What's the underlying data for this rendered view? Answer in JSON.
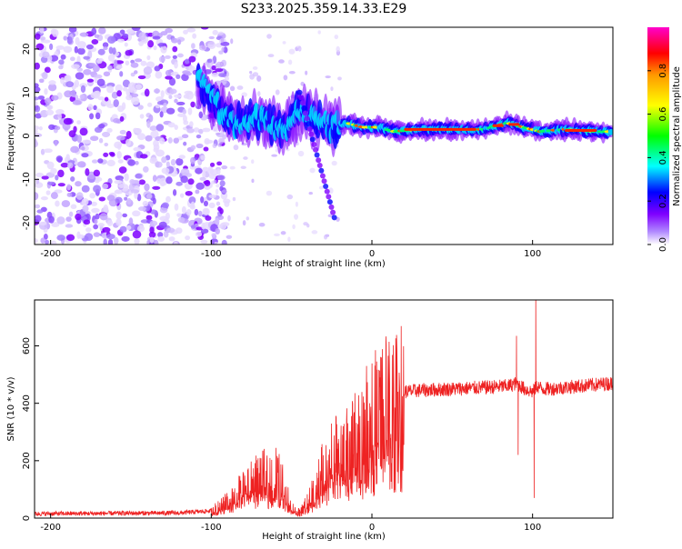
{
  "title": "S233.2025.359.14.33.E29",
  "chart_data": [
    {
      "type": "heatmap",
      "title": "S233.2025.359.14.33.E29",
      "xlabel": "Height of straight line (km)",
      "ylabel": "Frequency (Hz)",
      "xlim": [
        -210,
        150
      ],
      "ylim": [
        -25,
        25
      ],
      "xticks": [
        -200,
        -100,
        0,
        100
      ],
      "yticks": [
        -20,
        -10,
        0,
        10,
        20
      ],
      "colorbar": {
        "label": "Normalized spectral amplitude",
        "range": [
          0,
          1
        ],
        "ticks": [
          0.0,
          0.2,
          0.4,
          0.6,
          0.8
        ],
        "colormap": [
          "#ff00cc",
          "#ff0000",
          "#ffaa00",
          "#ffff00",
          "#00ff00",
          "#00ffff",
          "#0000ff",
          "#7f00ff",
          "#ffffff"
        ]
      },
      "ridge": {
        "description": "dominant spectral energy band",
        "x": [
          -105,
          -95,
          -85,
          -75,
          -65,
          -55,
          -45,
          -35,
          -25,
          -15,
          -5,
          5,
          15,
          30,
          50,
          70,
          85,
          95,
          105,
          120,
          140,
          150
        ],
        "y": [
          12,
          6,
          3,
          4,
          3,
          1,
          6,
          4,
          2,
          3,
          2,
          2,
          1,
          1.5,
          1.5,
          1.5,
          3,
          2,
          1,
          1.5,
          1,
          1
        ]
      },
      "noise_region": {
        "x_range": [
          -210,
          -100
        ],
        "note": "broadband low-amplitude speckle across all frequencies"
      }
    },
    {
      "type": "line",
      "title": "",
      "xlabel": "Height of straight line (km)",
      "ylabel": "SNR (10 * v/v)",
      "xlim": [
        -210,
        150
      ],
      "ylim": [
        0,
        760
      ],
      "xticks": [
        -200,
        -100,
        0,
        100
      ],
      "yticks": [
        0,
        200,
        400,
        600
      ],
      "series": [
        {
          "name": "SNR",
          "color": "#ee2222",
          "envelope_x": [
            -210,
            -120,
            -100,
            -90,
            -80,
            -70,
            -60,
            -55,
            -50,
            -45,
            -40,
            -35,
            -30,
            -25,
            -20,
            -15,
            -10,
            -5,
            0,
            5,
            10,
            15,
            20,
            30,
            50,
            70,
            85,
            90,
            95,
            100,
            103,
            106,
            110,
            120,
            140,
            150
          ],
          "envelope_y": [
            15,
            18,
            25,
            60,
            110,
            150,
            170,
            120,
            40,
            20,
            60,
            120,
            180,
            230,
            240,
            250,
            290,
            330,
            370,
            400,
            420,
            430,
            440,
            445,
            450,
            455,
            460,
            470,
            450,
            440,
            460,
            450,
            450,
            455,
            465,
            470
          ],
          "spikes": [
            {
              "x": 90,
              "y": 635
            },
            {
              "x": 91,
              "y": 220
            },
            {
              "x": 101,
              "y": 70
            },
            {
              "x": 102,
              "y": 780
            }
          ]
        }
      ]
    }
  ]
}
